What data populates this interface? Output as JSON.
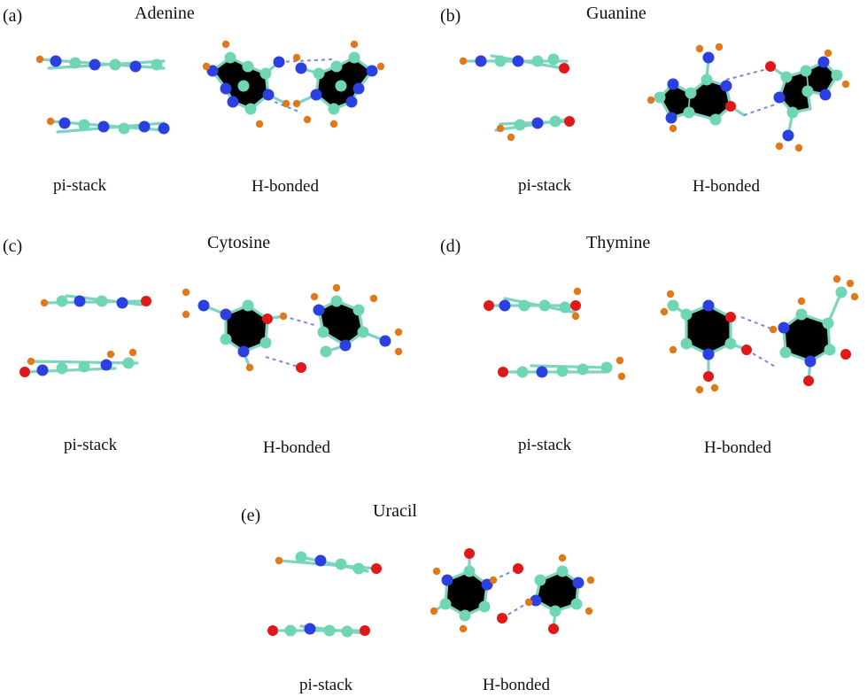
{
  "colors": {
    "carbon": "#6fd6b4",
    "nitrogen": "#2c3fe0",
    "oxygen": "#e01818",
    "hydrogen": "#e0781c",
    "bond": "#7fd3c2",
    "hbond": "#7a88d6"
  },
  "panels": [
    {
      "label": "(a)",
      "title": "Adenine",
      "stack_caption": "pi-stack",
      "hbond_caption": "H-bonded"
    },
    {
      "label": "(b)",
      "title": "Guanine",
      "stack_caption": "pi-stack",
      "hbond_caption": "H-bonded"
    },
    {
      "label": "(c)",
      "title": "Cytosine",
      "stack_caption": "pi-stack",
      "hbond_caption": "H-bonded"
    },
    {
      "label": "(d)",
      "title": "Thymine",
      "stack_caption": "pi-stack",
      "hbond_caption": "H-bonded"
    },
    {
      "label": "(e)",
      "title": "Uracil",
      "stack_caption": "pi-stack",
      "hbond_caption": "H-bonded"
    }
  ]
}
